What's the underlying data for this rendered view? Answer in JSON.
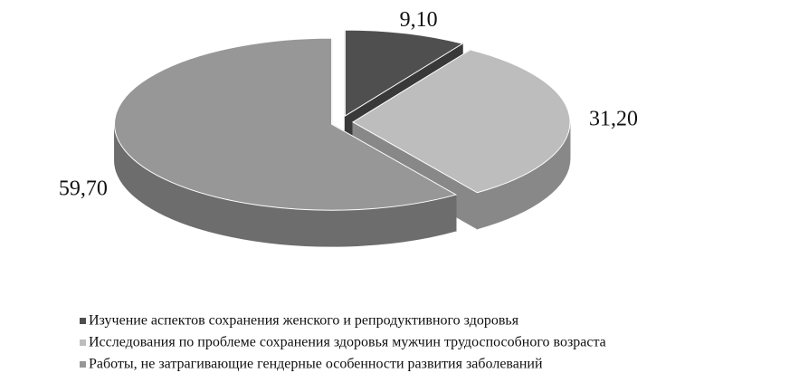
{
  "chart_data": {
    "type": "pie",
    "categories": [
      "Изучение аспектов сохранения женского и репродуктивного здоровья",
      "Исследования по проблеме сохранения здоровья мужчин трудоспособного возраста",
      "Работы, не затрагивающие гендерные особенности развития заболеваний"
    ],
    "values": [
      9.1,
      31.2,
      59.7
    ],
    "value_labels": [
      "9,10",
      "31,20",
      "59,70"
    ],
    "colors": [
      "#4f4f4f",
      "#bdbdbd",
      "#979797"
    ],
    "legend": "bottom",
    "three_d": true,
    "exploded": true
  }
}
